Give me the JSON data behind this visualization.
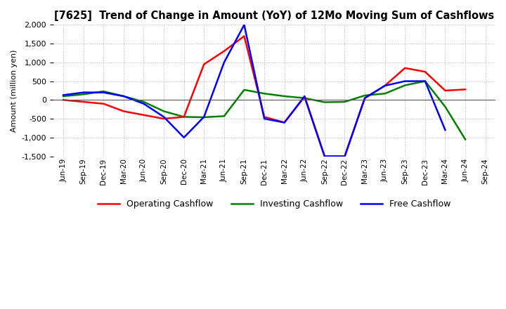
{
  "title": "[7625]  Trend of Change in Amount (YoY) of 12Mo Moving Sum of Cashflows",
  "ylabel": "Amount (million yen)",
  "x_labels": [
    "Jun-19",
    "Sep-19",
    "Dec-19",
    "Mar-20",
    "Jun-20",
    "Sep-20",
    "Dec-20",
    "Mar-21",
    "Jun-21",
    "Sep-21",
    "Dec-21",
    "Mar-22",
    "Jun-22",
    "Sep-22",
    "Dec-22",
    "Mar-23",
    "Jun-23",
    "Sep-23",
    "Dec-23",
    "Mar-24",
    "Jun-24",
    "Sep-24"
  ],
  "operating": [
    0,
    -50,
    -100,
    -300,
    -400,
    -500,
    -450,
    950,
    1300,
    1700,
    -450,
    -600,
    80,
    -1500,
    -1500,
    50,
    380,
    850,
    750,
    250,
    280,
    null
  ],
  "investing": [
    100,
    150,
    230,
    100,
    -50,
    -300,
    -450,
    -460,
    -430,
    270,
    170,
    100,
    50,
    -60,
    -50,
    120,
    170,
    390,
    500,
    -180,
    -1050,
    null
  ],
  "free": [
    130,
    200,
    200,
    100,
    -100,
    -450,
    -1000,
    -450,
    1000,
    2000,
    -500,
    -600,
    100,
    -1500,
    -1500,
    50,
    380,
    500,
    500,
    -800,
    null,
    null
  ],
  "ylim": [
    -1500,
    2000
  ],
  "yticks": [
    -1500,
    -1000,
    -500,
    0,
    500,
    1000,
    1500,
    2000
  ],
  "colors": {
    "operating": "#ff0000",
    "investing": "#008000",
    "free": "#0000ff"
  },
  "legend_labels": [
    "Operating Cashflow",
    "Investing Cashflow",
    "Free Cashflow"
  ],
  "background_color": "#ffffff",
  "grid_color": "#b0b0b0"
}
